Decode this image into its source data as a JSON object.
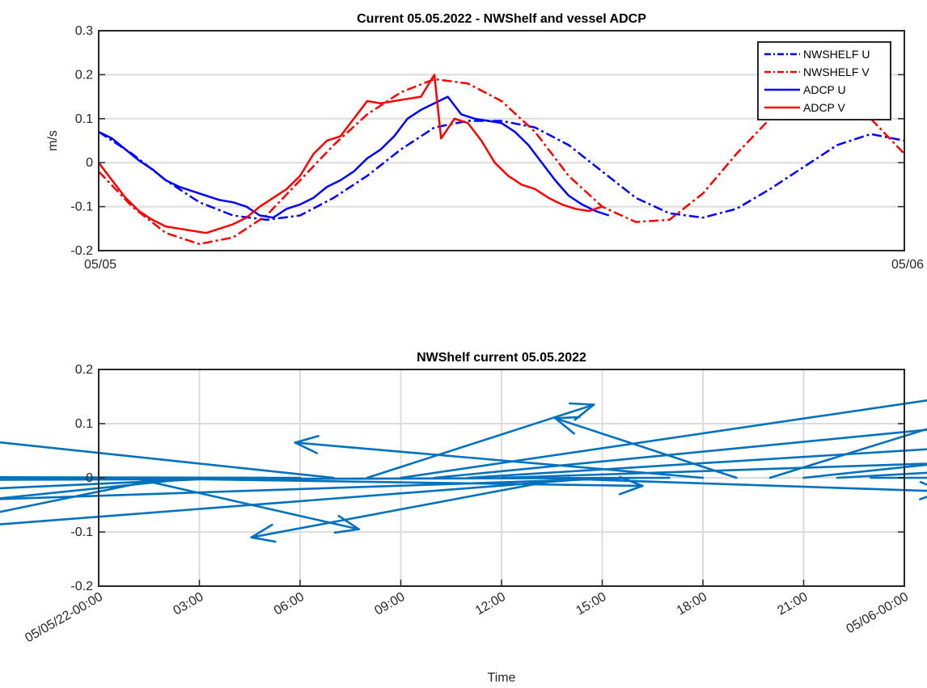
{
  "chart_data": [
    {
      "type": "line",
      "title": "Current 05.05.2022 - NWShelf and vessel ADCP",
      "xlabel": "",
      "ylabel": "m/s",
      "xlim": [
        0,
        24
      ],
      "ylim": [
        -0.2,
        0.3
      ],
      "yticks": [
        -0.2,
        -0.1,
        0,
        0.1,
        0.2,
        0.3
      ],
      "xtick_labels": [
        "05/05",
        "05/06"
      ],
      "grid": "horizontal",
      "legend_position": "top-right",
      "series": [
        {
          "name": "NWSHELF U",
          "color": "#0000ff",
          "style": "dashdot",
          "x": [
            0,
            1,
            2,
            3,
            4,
            5,
            6,
            7,
            8,
            9,
            10,
            11,
            12,
            13,
            14,
            15,
            16,
            17,
            18,
            19,
            20,
            21,
            22,
            23,
            24
          ],
          "y": [
            0.07,
            0.02,
            -0.04,
            -0.09,
            -0.12,
            -0.13,
            -0.12,
            -0.08,
            -0.03,
            0.03,
            0.08,
            0.095,
            0.095,
            0.08,
            0.04,
            -0.02,
            -0.08,
            -0.115,
            -0.125,
            -0.105,
            -0.06,
            -0.01,
            0.04,
            0.065,
            0.05
          ]
        },
        {
          "name": "NWSHELF V",
          "color": "#ff0000",
          "style": "dashdot",
          "x": [
            0,
            1,
            2,
            3,
            4,
            5,
            6,
            7,
            8,
            9,
            10,
            11,
            12,
            13,
            14,
            15,
            16,
            17,
            18,
            19,
            20,
            21,
            22,
            23,
            24
          ],
          "y": [
            -0.02,
            -0.1,
            -0.16,
            -0.185,
            -0.17,
            -0.12,
            -0.04,
            0.04,
            0.11,
            0.16,
            0.19,
            0.18,
            0.14,
            0.07,
            -0.03,
            -0.1,
            -0.135,
            -0.13,
            -0.07,
            0.02,
            0.1,
            0.155,
            0.15,
            0.1,
            0.02
          ]
        },
        {
          "name": "ADCP U",
          "color": "#0000ff",
          "style": "solid",
          "x": [
            0,
            0.4,
            0.8,
            1.2,
            1.6,
            2.0,
            2.4,
            2.8,
            3.2,
            3.6,
            4.0,
            4.4,
            4.8,
            5.2,
            5.6,
            6.0,
            6.4,
            6.8,
            7.2,
            7.6,
            8.0,
            8.4,
            8.8,
            9.2,
            9.6,
            10.0,
            10.4,
            10.8,
            11.2,
            11.6,
            12.0,
            12.4,
            12.8,
            13.2,
            13.6,
            14.0,
            14.4,
            14.8,
            15.2
          ],
          "y": [
            0.07,
            0.055,
            0.03,
            0.005,
            -0.015,
            -0.04,
            -0.055,
            -0.065,
            -0.075,
            -0.085,
            -0.09,
            -0.1,
            -0.12,
            -0.125,
            -0.105,
            -0.095,
            -0.08,
            -0.055,
            -0.04,
            -0.02,
            0.01,
            0.03,
            0.06,
            0.1,
            0.12,
            0.135,
            0.15,
            0.11,
            0.1,
            0.095,
            0.09,
            0.07,
            0.04,
            0.0,
            -0.04,
            -0.075,
            -0.095,
            -0.11,
            -0.12
          ]
        },
        {
          "name": "ADCP V",
          "color": "#ff0000",
          "style": "solid",
          "x": [
            0,
            0.4,
            0.8,
            1.2,
            1.6,
            2.0,
            2.4,
            2.8,
            3.2,
            3.6,
            4.0,
            4.4,
            4.8,
            5.2,
            5.6,
            6.0,
            6.4,
            6.8,
            7.2,
            7.6,
            8.0,
            8.4,
            8.8,
            9.2,
            9.6,
            10.0,
            10.2,
            10.6,
            11.0,
            11.4,
            11.8,
            12.2,
            12.6,
            13.0,
            13.4,
            13.8,
            14.2,
            14.6,
            15.0
          ],
          "y": [
            0.0,
            -0.04,
            -0.08,
            -0.11,
            -0.13,
            -0.145,
            -0.15,
            -0.155,
            -0.16,
            -0.15,
            -0.14,
            -0.125,
            -0.1,
            -0.08,
            -0.06,
            -0.03,
            0.02,
            0.05,
            0.06,
            0.1,
            0.14,
            0.135,
            0.14,
            0.145,
            0.15,
            0.2,
            0.055,
            0.1,
            0.09,
            0.05,
            0.0,
            -0.03,
            -0.05,
            -0.06,
            -0.08,
            -0.095,
            -0.105,
            -0.11,
            -0.1
          ]
        }
      ]
    },
    {
      "type": "quiver",
      "title": "NWShelf current 05.05.2022",
      "xlabel": "Time",
      "ylabel": "",
      "xlim": [
        0,
        24
      ],
      "ylim": [
        -0.2,
        0.2
      ],
      "yticks": [
        -0.2,
        -0.1,
        0,
        0.1,
        0.2
      ],
      "xtick_labels": [
        "05/05/22-00:00",
        "03:00",
        "06:00",
        "09:00",
        "12:00",
        "15:00",
        "18:00",
        "21:00",
        "05/06-00:00"
      ],
      "grid": "both",
      "color": "#0072bd",
      "vectors": [
        {
          "t": 0,
          "u": 0.06,
          "v": -0.015
        },
        {
          "t": 1,
          "u": 0.025,
          "v": -0.095
        },
        {
          "t": 2,
          "u": -0.045,
          "v": -0.155
        },
        {
          "t": 3,
          "u": -0.09,
          "v": -0.155
        },
        {
          "t": 4,
          "u": -0.12,
          "v": -0.09
        },
        {
          "t": 5,
          "u": -0.135,
          "v": 0.005
        },
        {
          "t": 6,
          "u": -0.12,
          "v": 0.0
        },
        {
          "t": 7,
          "u": -0.045,
          "v": 0.08
        },
        {
          "t": 8,
          "u": 0.025,
          "v": 0.135
        },
        {
          "t": 9,
          "u": 0.065,
          "v": 0.16
        },
        {
          "t": 10,
          "u": 0.095,
          "v": 0.155
        },
        {
          "t": 11,
          "u": 0.12,
          "v": 0.125
        },
        {
          "t": 12,
          "u": 0.09,
          "v": 0.05
        },
        {
          "t": 13,
          "u": 0.045,
          "v": -0.025
        },
        {
          "t": 14,
          "u": -0.035,
          "v": -0.11
        },
        {
          "t": 15,
          "u": -0.085,
          "v": -0.11
        },
        {
          "t": 16,
          "u": -0.125,
          "v": -0.07
        },
        {
          "t": 17,
          "u": -0.1,
          "v": -0.005
        },
        {
          "t": 18,
          "u": -0.045,
          "v": 0.065
        },
        {
          "t": 19,
          "u": -0.02,
          "v": 0.11
        },
        {
          "t": 20,
          "u": 0.025,
          "v": 0.13
        },
        {
          "t": 21,
          "u": 0.065,
          "v": 0.115
        },
        {
          "t": 22,
          "u": 0.075,
          "v": 0.07
        },
        {
          "t": 23,
          "u": 0.06,
          "v": 0.0
        }
      ]
    }
  ]
}
